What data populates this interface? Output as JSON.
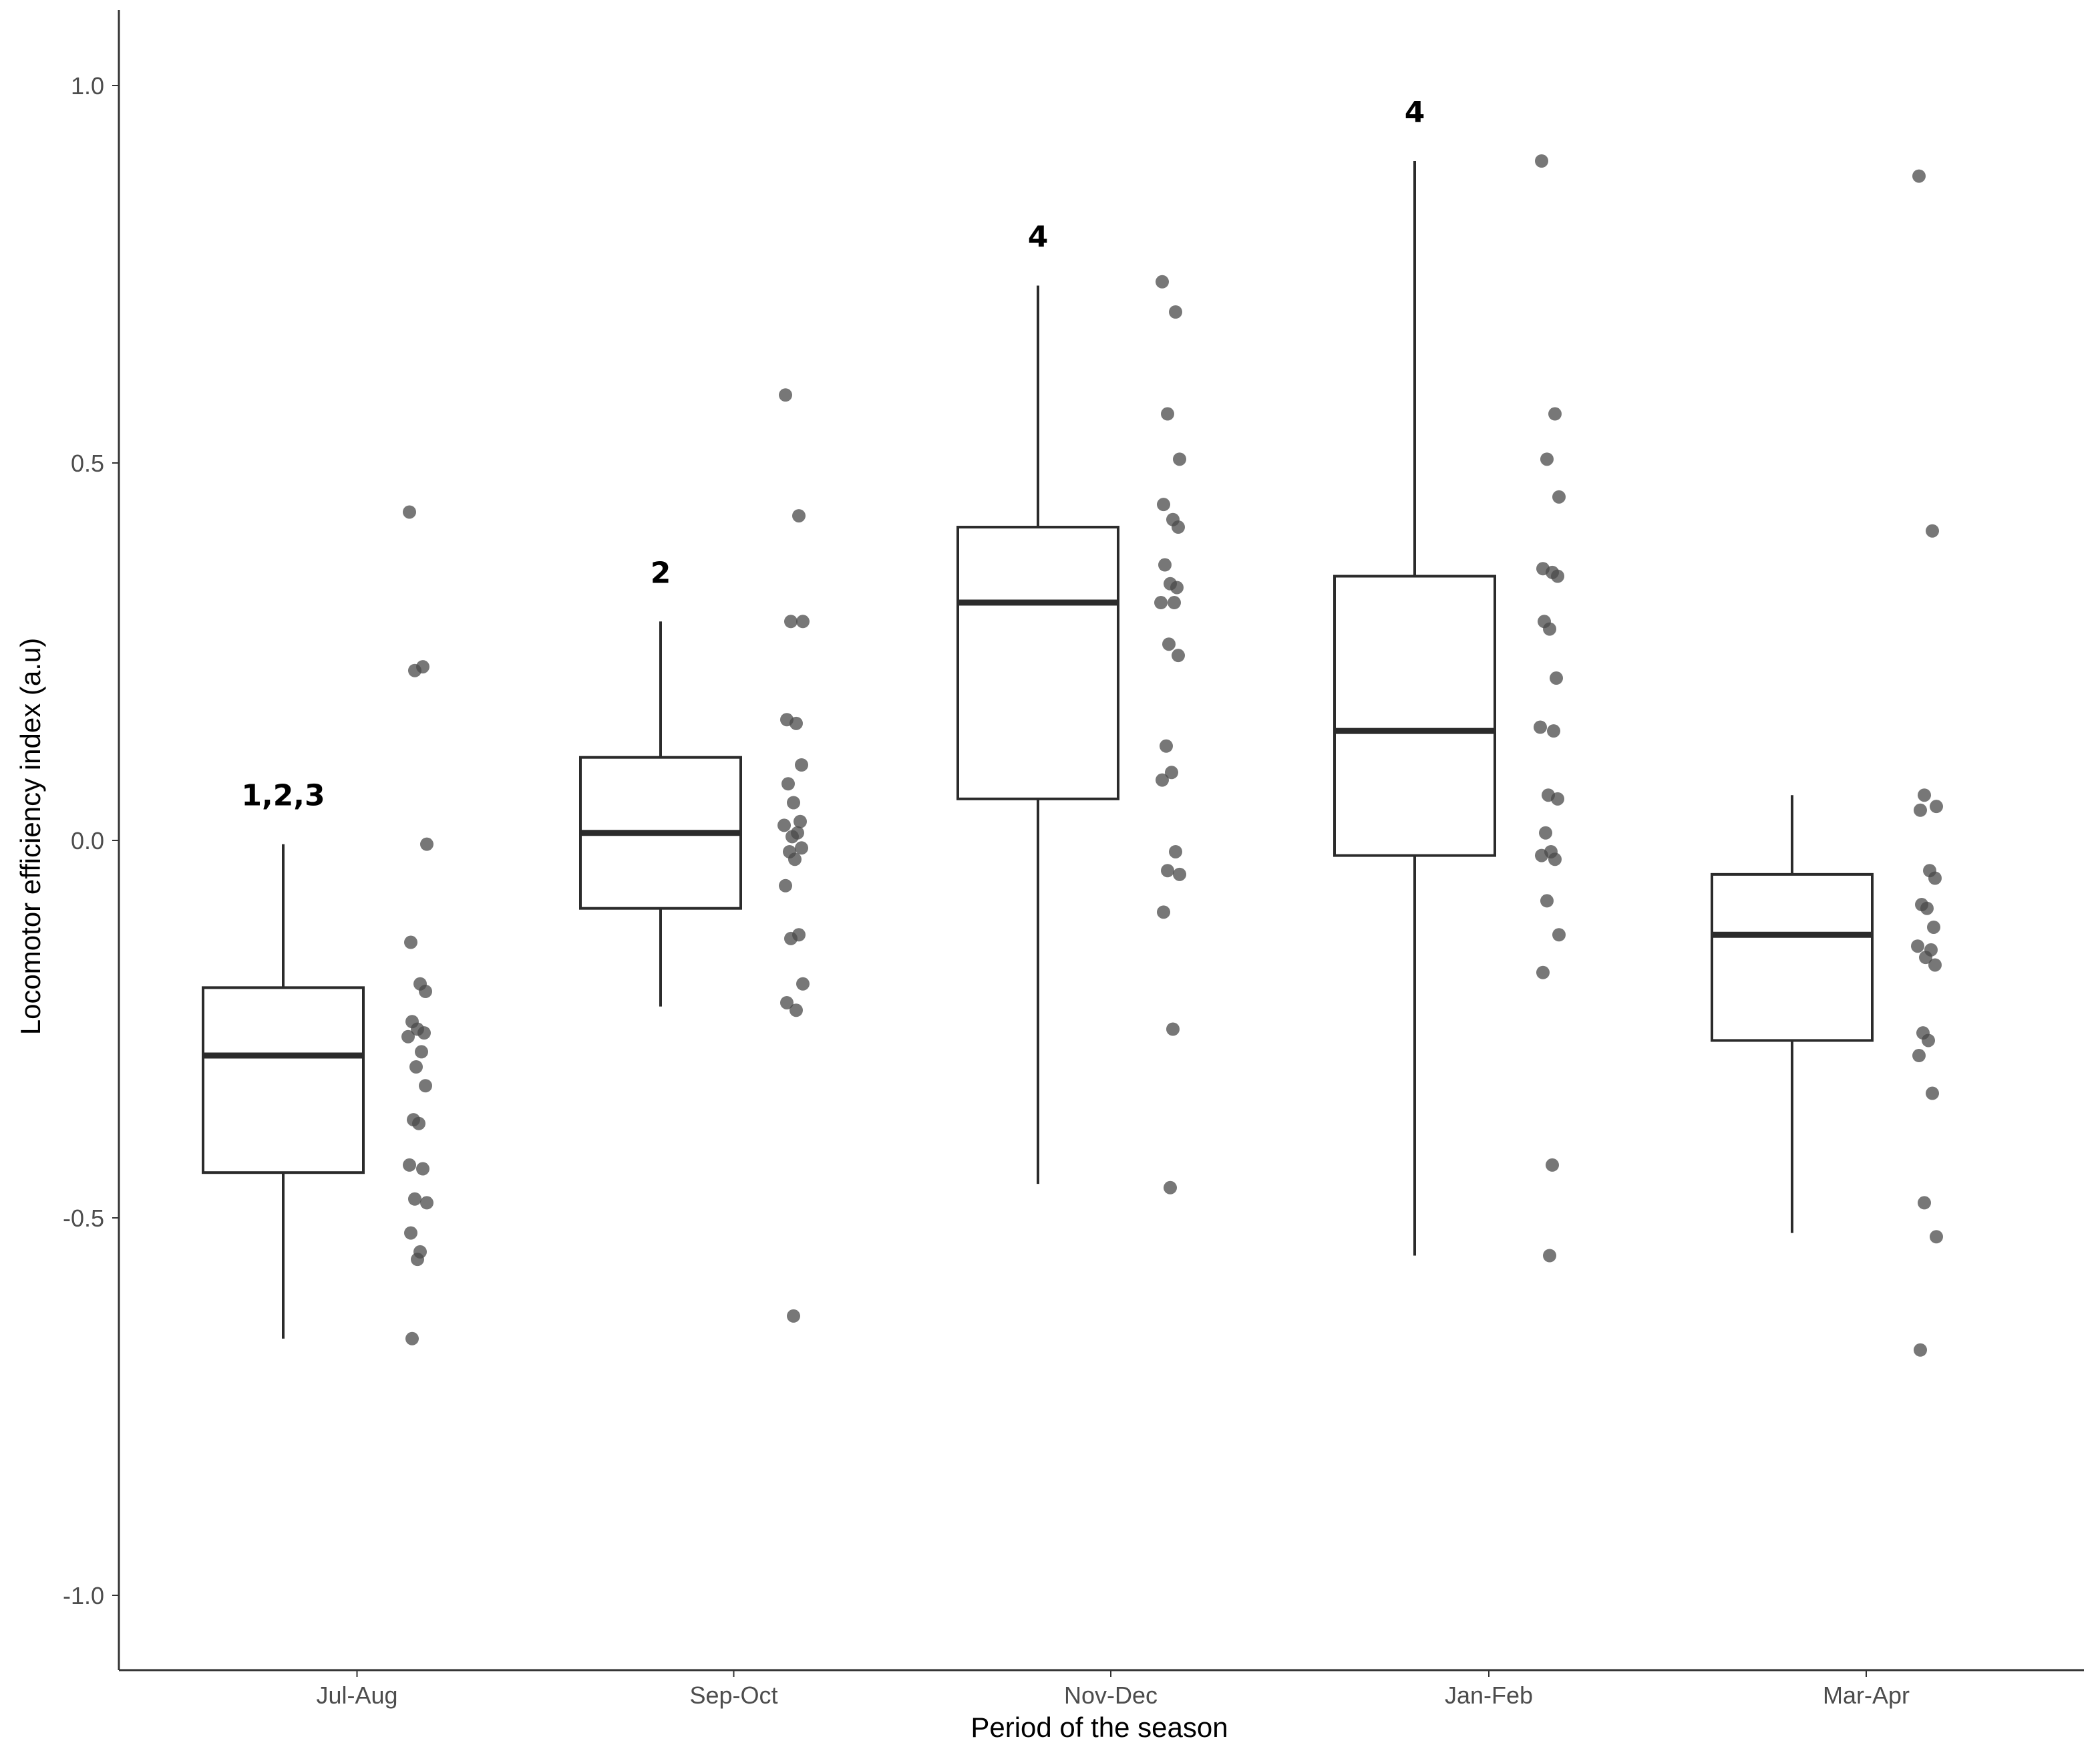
{
  "chart_data": {
    "type": "box",
    "xlabel": "Period of the season",
    "ylabel": "Locomotor efficiency index (a.u)",
    "ylim": [
      -1.1,
      1.1
    ],
    "yticks": [
      {
        "value": 1.0,
        "label": "1.0"
      },
      {
        "value": 0.5,
        "label": "0.5"
      },
      {
        "value": 0.0,
        "label": "0.0"
      },
      {
        "value": -0.5,
        "label": "-0.5"
      },
      {
        "value": -1.0,
        "label": "-1.0"
      }
    ],
    "grid": false,
    "legend": "none",
    "colors": {
      "box_stroke": "#2b2b2b",
      "points": "#4a4a4a",
      "axis": "#333333"
    },
    "categories": [
      "Jul-Aug",
      "Sep-Oct",
      "Nov-Dec",
      "Jan-Feb",
      "Mar-Apr"
    ],
    "groups": [
      {
        "category": "Jul-Aug",
        "significance": "1,2,3",
        "whisker_low": -0.66,
        "q1": -0.44,
        "median": -0.285,
        "q3": -0.195,
        "whisker_high": -0.005,
        "points": [
          0.435,
          0.23,
          0.225,
          -0.005,
          -0.135,
          -0.19,
          -0.2,
          -0.24,
          -0.25,
          -0.255,
          -0.26,
          -0.28,
          -0.3,
          -0.325,
          -0.37,
          -0.375,
          -0.43,
          -0.435,
          -0.475,
          -0.48,
          -0.52,
          -0.545,
          -0.555,
          -0.66
        ]
      },
      {
        "category": "Sep-Oct",
        "significance": "2",
        "whisker_low": -0.22,
        "q1": -0.09,
        "median": 0.01,
        "q3": 0.11,
        "whisker_high": 0.29,
        "points": [
          0.59,
          0.43,
          0.29,
          0.29,
          0.16,
          0.155,
          0.1,
          0.075,
          0.05,
          0.025,
          0.02,
          0.01,
          0.005,
          -0.01,
          -0.015,
          -0.025,
          -0.06,
          -0.125,
          -0.13,
          -0.19,
          -0.215,
          -0.225,
          -0.63
        ]
      },
      {
        "category": "Nov-Dec",
        "significance": "4",
        "whisker_low": -0.455,
        "q1": 0.055,
        "median": 0.315,
        "q3": 0.415,
        "whisker_high": 0.735,
        "points": [
          0.74,
          0.7,
          0.565,
          0.505,
          0.445,
          0.425,
          0.415,
          0.365,
          0.34,
          0.335,
          0.315,
          0.315,
          0.26,
          0.245,
          0.125,
          0.09,
          0.08,
          -0.015,
          -0.04,
          -0.045,
          -0.095,
          -0.25,
          -0.46
        ]
      },
      {
        "category": "Jan-Feb",
        "significance": "4",
        "whisker_low": -0.55,
        "q1": -0.02,
        "median": 0.145,
        "q3": 0.35,
        "whisker_high": 0.9,
        "points": [
          0.9,
          0.565,
          0.505,
          0.455,
          0.36,
          0.355,
          0.35,
          0.29,
          0.28,
          0.215,
          0.15,
          0.145,
          0.06,
          0.055,
          0.01,
          -0.015,
          -0.02,
          -0.025,
          -0.08,
          -0.125,
          -0.175,
          -0.43,
          -0.55
        ]
      },
      {
        "category": "Mar-Apr",
        "significance": "",
        "whisker_low": -0.52,
        "q1": -0.265,
        "median": -0.125,
        "q3": -0.045,
        "whisker_high": 0.06,
        "points": [
          0.88,
          0.41,
          0.06,
          0.045,
          0.04,
          -0.04,
          -0.05,
          -0.085,
          -0.09,
          -0.115,
          -0.14,
          -0.145,
          -0.155,
          -0.165,
          -0.255,
          -0.265,
          -0.285,
          -0.335,
          -0.48,
          -0.525,
          -0.675
        ]
      }
    ]
  }
}
